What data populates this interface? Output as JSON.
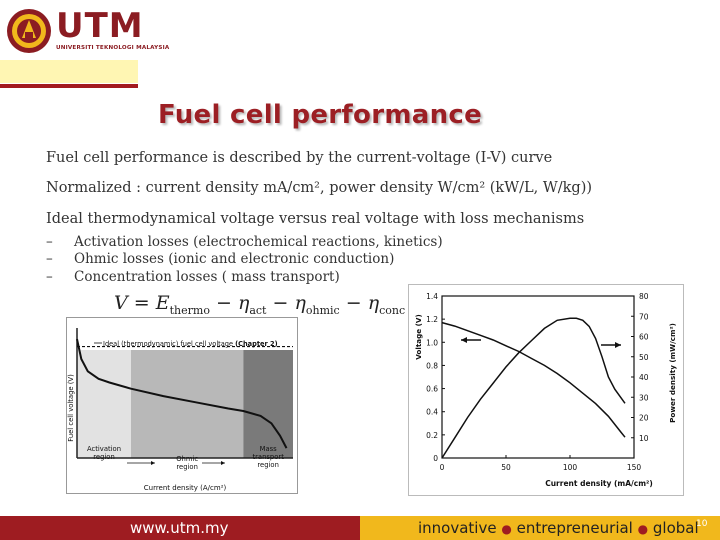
{
  "header": {
    "logo_text": "UTM",
    "logo_subtitle": "UNIVERSITI TEKNOLOGI MALAYSIA"
  },
  "slide": {
    "title": "Fuel cell performance",
    "bullets": [
      "Fuel cell performance is described by the current-voltage (I-V) curve",
      "Normalized : current density mA/cm², power density W/cm² (kW/L, W/kg))",
      "Ideal thermodynamical voltage  versus real voltage with  loss mechanisms"
    ],
    "sub_bullets": [
      "Activation losses (electrochemical reactions, kinetics)",
      "Ohmic losses (ionic and electronic conduction)",
      "Concentration losses ( mass transport)"
    ],
    "equation": {
      "lhs": "V",
      "eq": " = ",
      "e": "E",
      "e_sub": "thermo",
      "minus": " − ",
      "eta": "η",
      "t1_sub": "act",
      "t2_sub": "ohmic",
      "t3_sub": "conc"
    }
  },
  "chart_data": [
    {
      "type": "line",
      "title": "",
      "ylabel": "Fuel cell voltage (V)",
      "xlabel": "Current density (A/cm²)",
      "ideal_label": "Ideal (thermodynamic) fuel cell voltage",
      "ideal_label_bold": "(Chapter 2)",
      "regions": [
        {
          "name": "Activation region",
          "lines": [
            "Activation",
            "region"
          ],
          "fill": "#e2e2e2"
        },
        {
          "name": "Ohmic region",
          "lines": [
            "Ohmic",
            "region"
          ],
          "fill": "#b8b8b8"
        },
        {
          "name": "Mass transport region",
          "lines": [
            "Mass",
            "transport",
            "region"
          ],
          "fill": "#7a7a7a"
        }
      ],
      "region_bounds": [
        0,
        0.25,
        0.77,
        1.0
      ],
      "curve": {
        "x": [
          0.0,
          0.02,
          0.05,
          0.1,
          0.15,
          0.25,
          0.4,
          0.55,
          0.7,
          0.77,
          0.85,
          0.9,
          0.94,
          0.97
        ],
        "y": [
          0.96,
          0.8,
          0.7,
          0.64,
          0.61,
          0.56,
          0.5,
          0.45,
          0.4,
          0.38,
          0.34,
          0.28,
          0.18,
          0.08
        ]
      },
      "ideal_y": 0.9,
      "xlim": [
        0,
        1
      ],
      "ylim": [
        0,
        1.05
      ]
    },
    {
      "type": "line",
      "title": "",
      "xlabel": "Current density (mA/cm²)",
      "ylabel": "Voltage (V)",
      "y2label": "Power density (mW/cm²)",
      "xlim": [
        0,
        150
      ],
      "ylim": [
        0,
        1.4
      ],
      "y2lim": [
        0,
        80
      ],
      "x_ticks": [
        "0",
        "50",
        "100",
        "150"
      ],
      "y_ticks": [
        "0",
        "0.2",
        "0.4",
        "0.6",
        "0.8",
        "1.0",
        "1.2",
        "1.4"
      ],
      "y2_ticks": [
        "10",
        "20",
        "30",
        "40",
        "50",
        "60",
        "70",
        "80"
      ],
      "series": [
        {
          "axis": "left",
          "x": [
            0,
            10,
            20,
            30,
            40,
            50,
            60,
            70,
            80,
            90,
            100,
            110,
            120,
            130,
            140,
            143
          ],
          "y": [
            1.17,
            1.14,
            1.1,
            1.06,
            1.02,
            0.97,
            0.92,
            0.86,
            0.8,
            0.73,
            0.65,
            0.56,
            0.47,
            0.36,
            0.22,
            0.18
          ]
        },
        {
          "axis": "right",
          "x": [
            0,
            10,
            20,
            30,
            40,
            50,
            60,
            70,
            80,
            90,
            100,
            105,
            110,
            115,
            120,
            125,
            130,
            135,
            143
          ],
          "y": [
            0,
            10,
            20,
            29,
            37,
            45,
            52,
            58,
            64,
            68,
            69,
            69,
            68,
            65,
            59,
            50,
            40,
            34,
            27
          ]
        }
      ]
    }
  ],
  "footer": {
    "website": "www.utm.my",
    "tag_1": "innovative",
    "tag_2": "entrepreneurial",
    "tag_3": "global",
    "bullet": "●",
    "page_number": "10"
  }
}
